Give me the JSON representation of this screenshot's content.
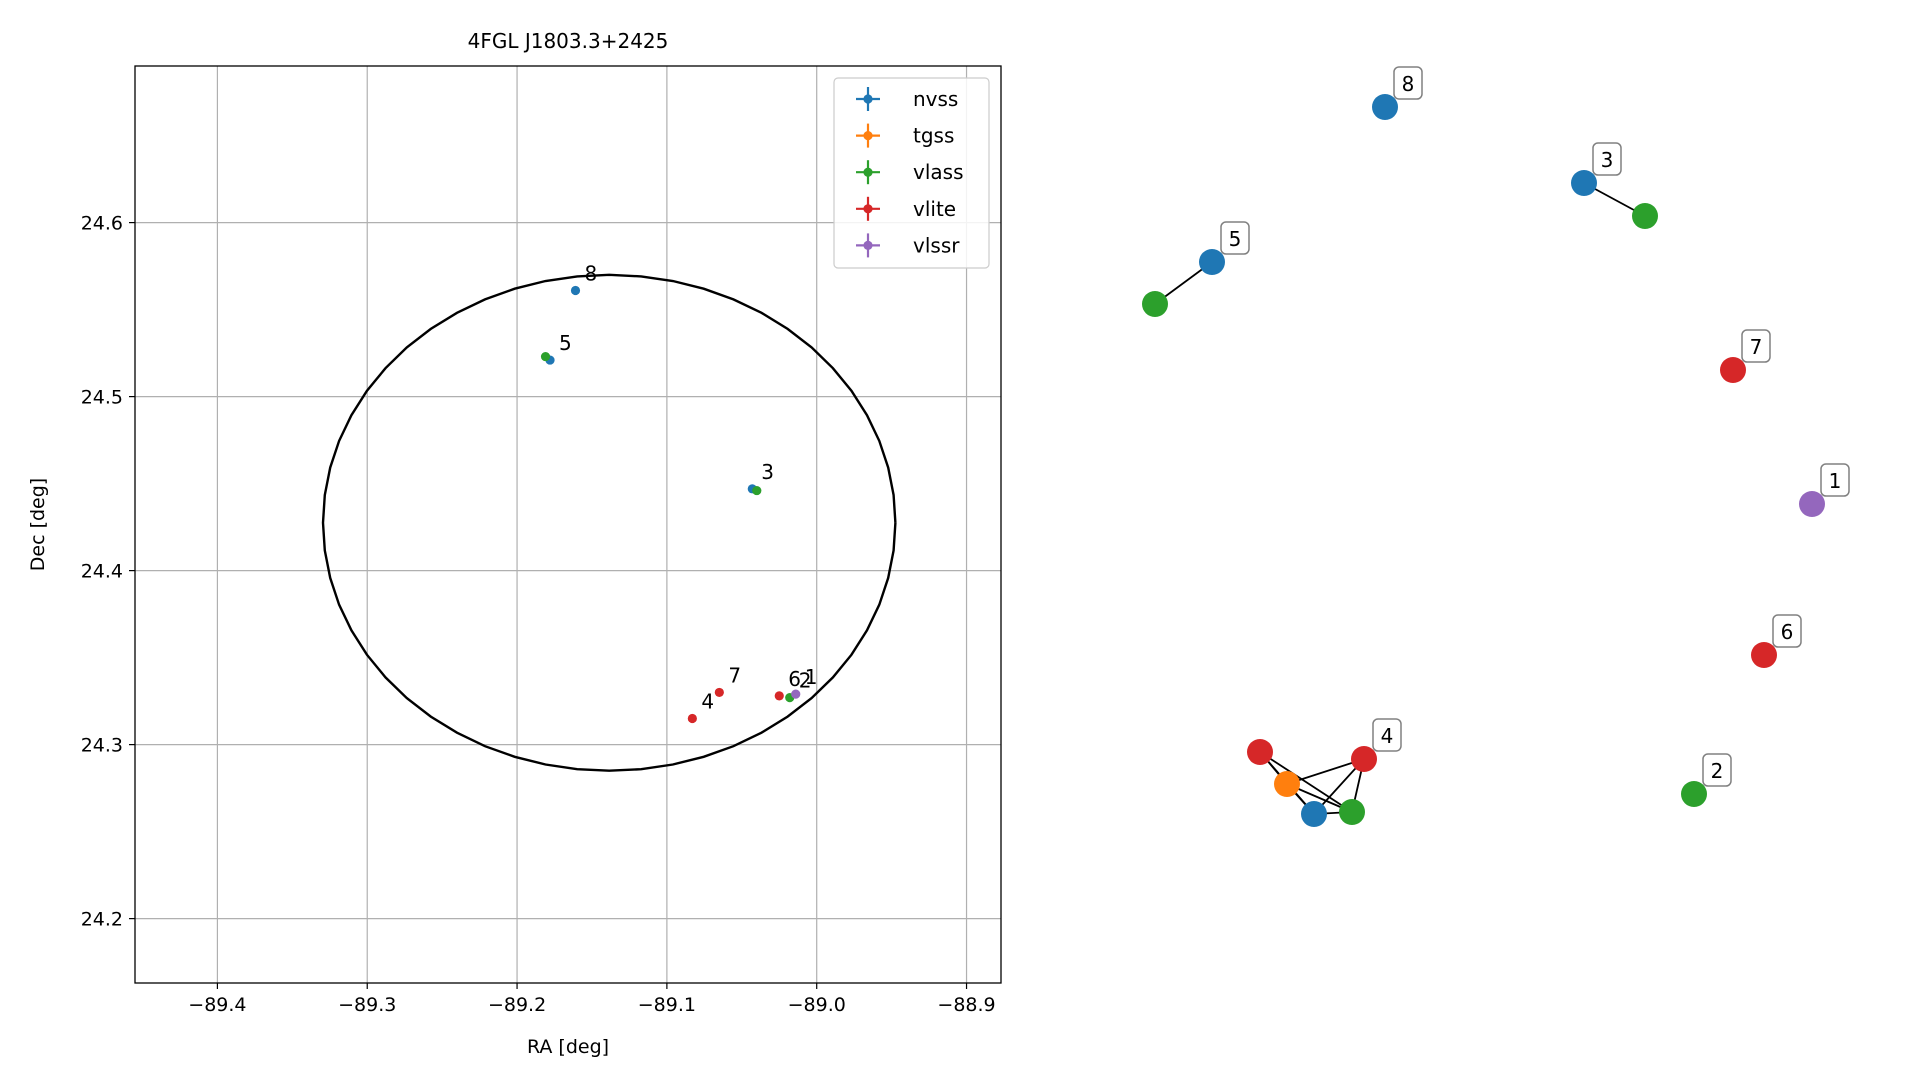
{
  "chart_data": [
    {
      "type": "scatter",
      "title": "4FGL J1803.3+2425",
      "xlabel": "RA [deg]",
      "ylabel": "Dec [deg]",
      "xlim": [
        -89.455,
        -88.877
      ],
      "ylim": [
        24.163,
        24.69
      ],
      "xticks": [
        -89.4,
        -89.3,
        -89.2,
        -89.1,
        -89.0,
        -88.9
      ],
      "xtick_labels": [
        "−89.4",
        "−89.3",
        "−89.2",
        "−89.1",
        "−89.0",
        "−88.9"
      ],
      "yticks": [
        24.2,
        24.3,
        24.4,
        24.5,
        24.6
      ],
      "ytick_labels": [
        "24.2",
        "24.3",
        "24.4",
        "24.5",
        "24.6"
      ],
      "grid": true,
      "legend_position": "top-right",
      "colors": {
        "nvss": "#1f77b4",
        "tgss": "#ff7f0e",
        "vlass": "#2ca02c",
        "vlite": "#d62728",
        "vlssr": "#9467bd"
      },
      "legend": [
        "nvss",
        "tgss",
        "vlass",
        "vlite",
        "vlssr"
      ],
      "ellipse": {
        "center": [
          -89.1385,
          24.4275
        ],
        "ra_semi_axis": 0.191,
        "dec_semi_axis": 0.1425,
        "color": "#000000"
      },
      "series": [
        {
          "name": "nvss",
          "points": [
            [
              -89.161,
              24.561
            ],
            [
              -89.178,
              24.521
            ],
            [
              -89.043,
              24.447
            ]
          ]
        },
        {
          "name": "tgss",
          "points": []
        },
        {
          "name": "vlass",
          "points": [
            [
              -89.181,
              24.523
            ],
            [
              -89.04,
              24.446
            ],
            [
              -89.018,
              24.327
            ]
          ]
        },
        {
          "name": "vlite",
          "points": [
            [
              -89.083,
              24.315
            ],
            [
              -89.065,
              24.33
            ],
            [
              -89.025,
              24.328
            ]
          ]
        },
        {
          "name": "vlssr",
          "points": [
            [
              -89.014,
              24.329
            ]
          ]
        }
      ],
      "annotations": [
        {
          "text": "8",
          "x": -89.161,
          "y": 24.561
        },
        {
          "text": "5",
          "x": -89.178,
          "y": 24.521
        },
        {
          "text": "3",
          "x": -89.043,
          "y": 24.447
        },
        {
          "text": "7",
          "x": -89.065,
          "y": 24.33
        },
        {
          "text": "4",
          "x": -89.083,
          "y": 24.315
        },
        {
          "text": "6",
          "x": -89.025,
          "y": 24.328
        },
        {
          "text": "2",
          "x": -89.018,
          "y": 24.327
        },
        {
          "text": "1",
          "x": -89.014,
          "y": 24.329
        }
      ]
    },
    {
      "type": "network",
      "nodes": [
        {
          "id": "n8",
          "survey": "nvss",
          "label": "8"
        },
        {
          "id": "n3",
          "survey": "nvss",
          "label": "3"
        },
        {
          "id": "v3",
          "survey": "vlass",
          "label": ""
        },
        {
          "id": "n5",
          "survey": "nvss",
          "label": "5"
        },
        {
          "id": "v5",
          "survey": "vlass",
          "label": ""
        },
        {
          "id": "r7",
          "survey": "vlite",
          "label": "7"
        },
        {
          "id": "p1",
          "survey": "vlssr",
          "label": "1"
        },
        {
          "id": "r6",
          "survey": "vlite",
          "label": "6"
        },
        {
          "id": "v2",
          "survey": "vlass",
          "label": "2"
        },
        {
          "id": "r4a",
          "survey": "vlite",
          "label": ""
        },
        {
          "id": "t4",
          "survey": "tgss",
          "label": ""
        },
        {
          "id": "r4b",
          "survey": "vlite",
          "label": "4"
        },
        {
          "id": "n4",
          "survey": "nvss",
          "label": ""
        },
        {
          "id": "v4",
          "survey": "vlass",
          "label": ""
        }
      ],
      "edges": [
        [
          "n3",
          "v3"
        ],
        [
          "n5",
          "v5"
        ],
        [
          "r4a",
          "t4"
        ],
        [
          "r4a",
          "n4"
        ],
        [
          "r4a",
          "v4"
        ],
        [
          "t4",
          "r4b"
        ],
        [
          "t4",
          "n4"
        ],
        [
          "t4",
          "v4"
        ],
        [
          "r4b",
          "n4"
        ],
        [
          "r4b",
          "v4"
        ],
        [
          "n4",
          "v4"
        ]
      ]
    }
  ]
}
